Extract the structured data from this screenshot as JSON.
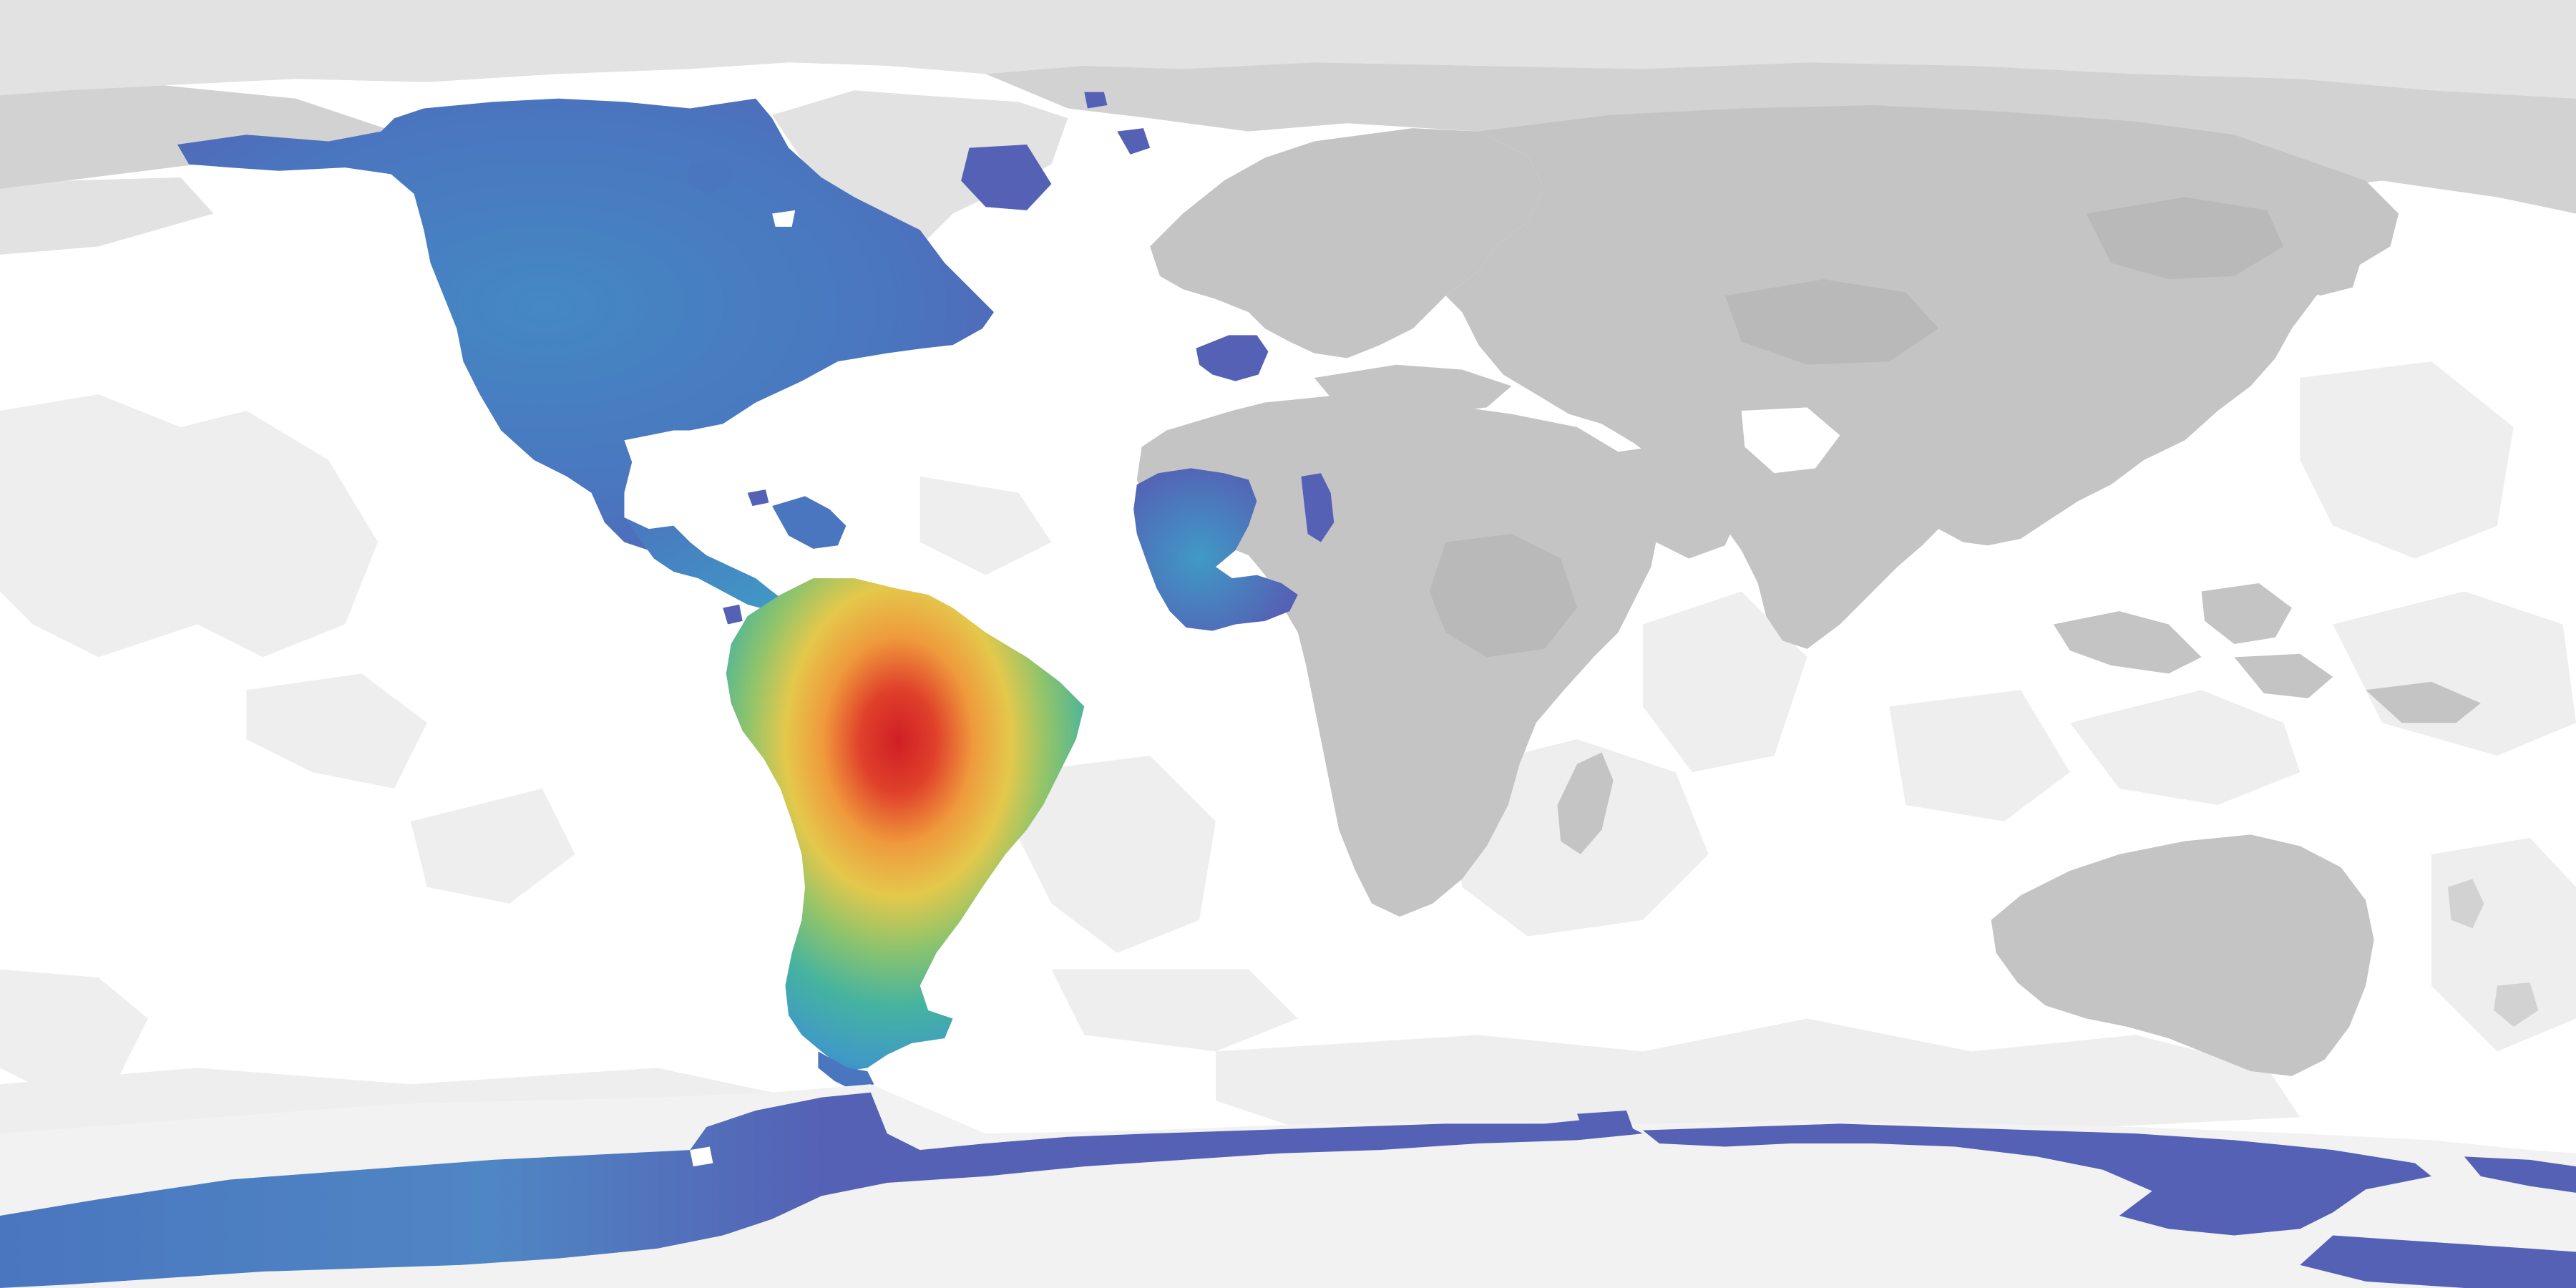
{
  "map": {
    "projection": "equirectangular",
    "colors": {
      "ocean_background": "#ffffff",
      "ocean_light_patches": "#eeeeee",
      "polar_ice_light": "#e2e2e2",
      "polar_ice_mid": "#d2d2d2",
      "land_gray_main": "#c4c4c4",
      "land_gray_dark": "#b9b9b9",
      "antarctic_interior": "#f2f2f3",
      "heat_low_dark_blue": "#5561b5",
      "heat_low_blue": "#4a76bf",
      "heat_mid_blue": "#3f9ac6",
      "heat_teal": "#45b3a0",
      "heat_green": "#8fc46b",
      "heat_yellow": "#e4c84c",
      "heat_orange": "#ef9a3c",
      "heat_red": "#e0402b",
      "heat_dark_red": "#cf1f25"
    },
    "highlighted_regions": [
      "north-america",
      "central-america",
      "south-america",
      "greenland",
      "west-africa",
      "iberia",
      "british-isles",
      "antarctic-coast"
    ],
    "grayed_regions": [
      "europe",
      "asia",
      "africa",
      "australia",
      "arctic"
    ]
  }
}
